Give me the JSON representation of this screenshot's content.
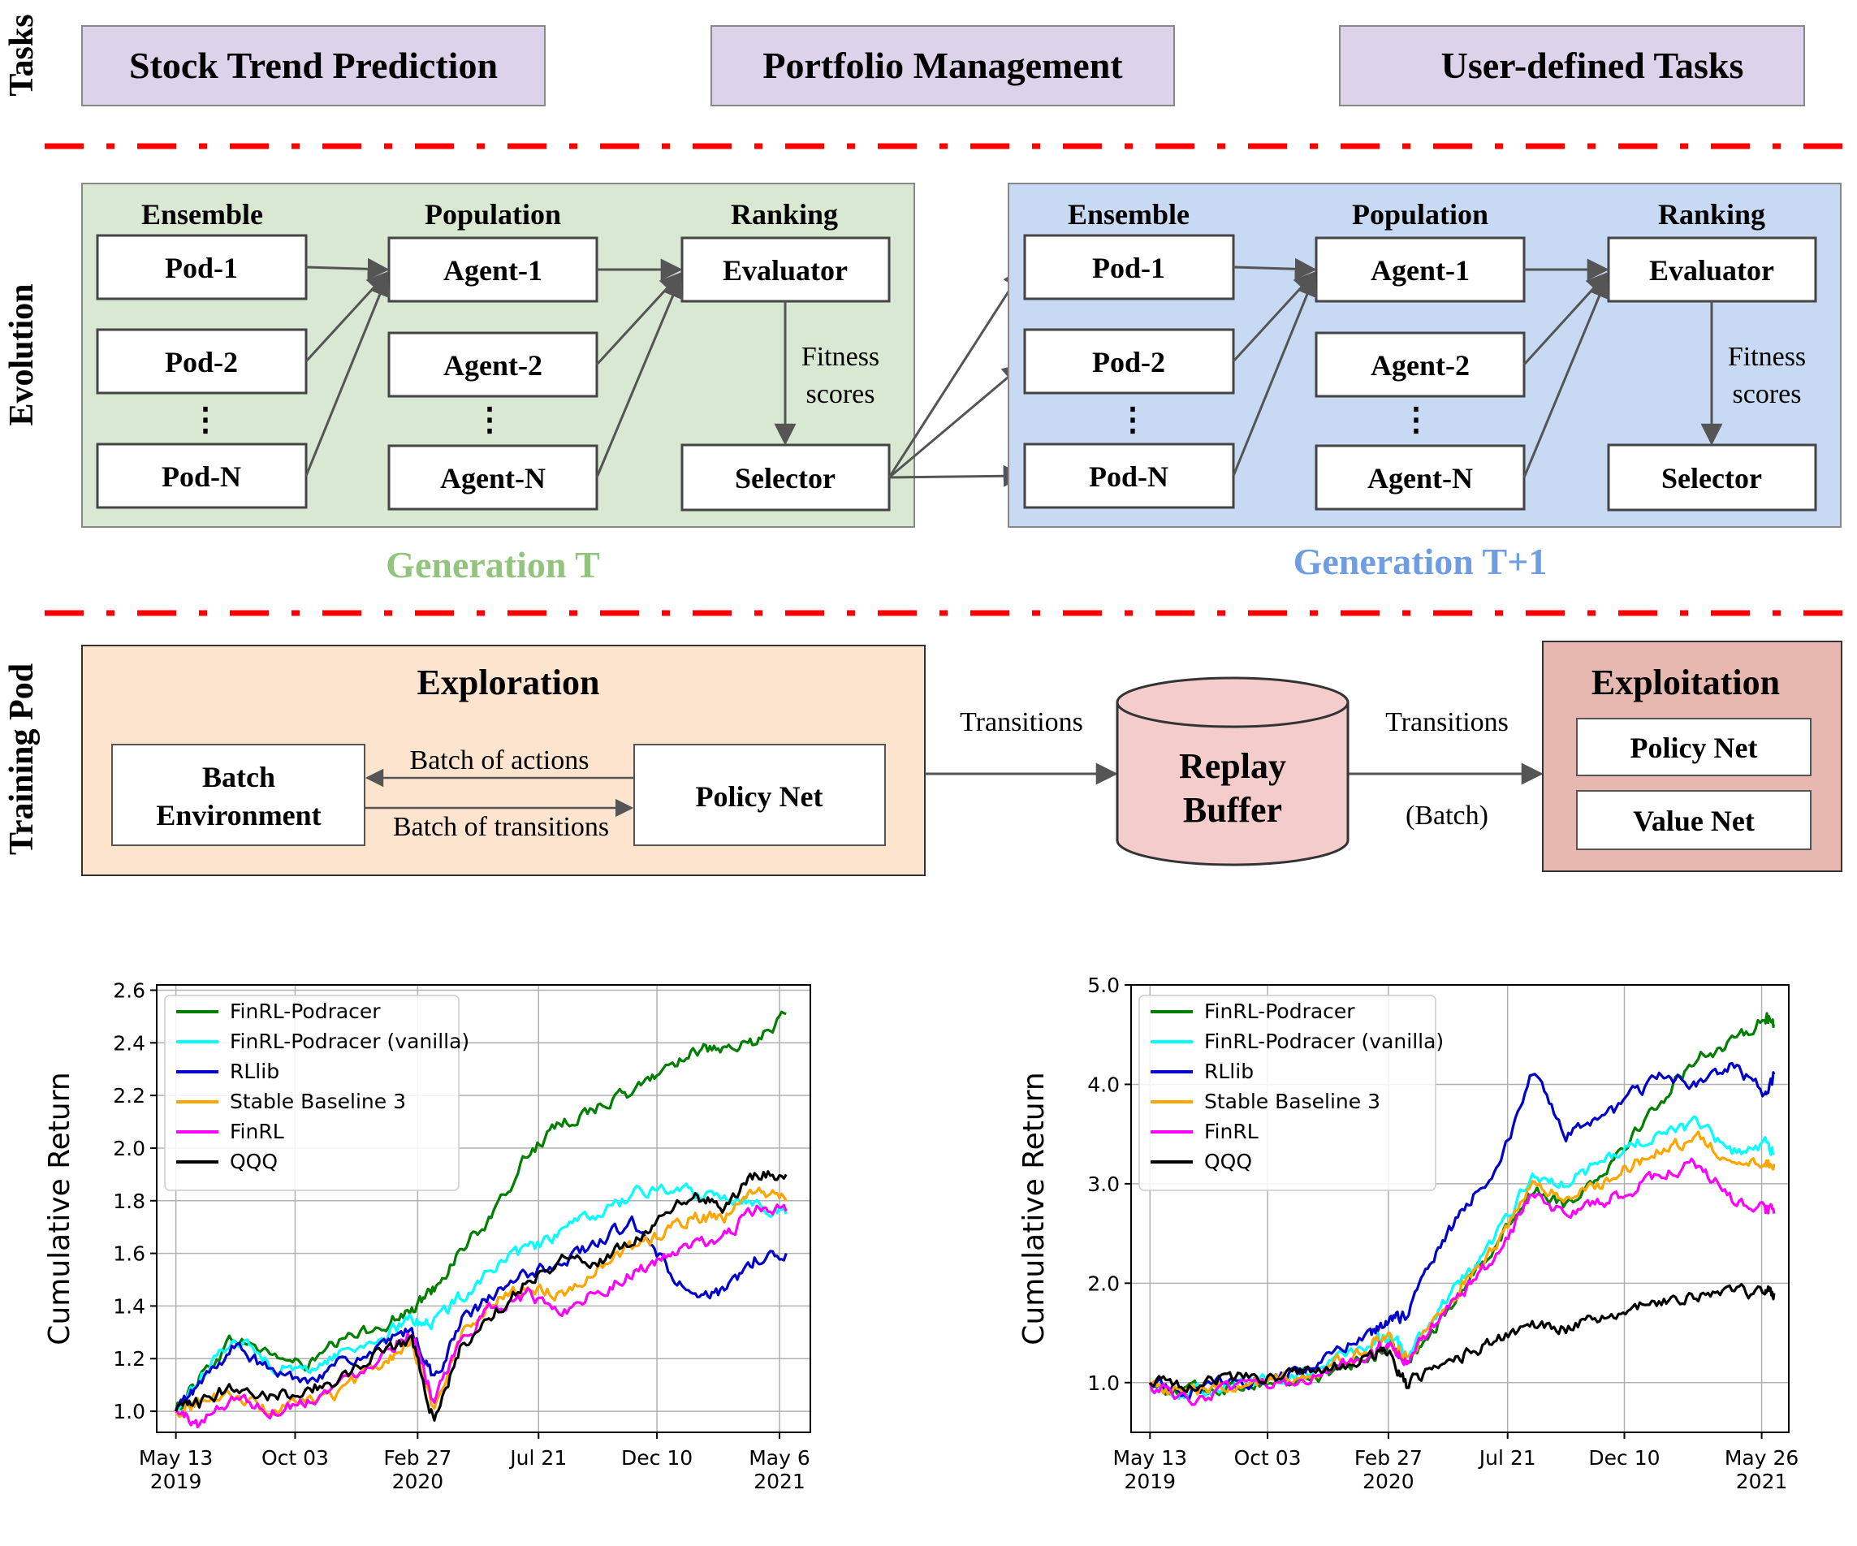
{
  "side_labels": {
    "tasks": "Tasks",
    "evolution": "Evolution",
    "training_pod": "Training Pod"
  },
  "tasks": [
    "Stock Trend Prediction",
    "Portfolio Management",
    "User-defined Tasks"
  ],
  "generations": [
    {
      "caption": "Generation T",
      "ensemble_header": "Ensemble",
      "population_header": "Population",
      "ranking_header": "Ranking",
      "pods": [
        "Pod-1",
        "Pod-2",
        "Pod-N"
      ],
      "agents": [
        "Agent-1",
        "Agent-2",
        "Agent-N"
      ],
      "evaluator": "Evaluator",
      "selector": "Selector",
      "fitness_line1": "Fitness",
      "fitness_line2": "scores"
    },
    {
      "caption": "Generation T+1",
      "ensemble_header": "Ensemble",
      "population_header": "Population",
      "ranking_header": "Ranking",
      "pods": [
        "Pod-1",
        "Pod-2",
        "Pod-N"
      ],
      "agents": [
        "Agent-1",
        "Agent-2",
        "Agent-N"
      ],
      "evaluator": "Evaluator",
      "selector": "Selector",
      "fitness_line1": "Fitness",
      "fitness_line2": "scores"
    }
  ],
  "training_pod": {
    "exploration_title": "Exploration",
    "batch_env_line1": "Batch",
    "batch_env_line2": "Environment",
    "policy_net": "Policy Net",
    "batch_actions": "Batch of actions",
    "batch_transitions": "Batch of transitions",
    "transitions_left": "Transitions",
    "replay_line1": "Replay",
    "replay_line2": "Buffer",
    "transitions_right": "Transitions",
    "batch_paren": "(Batch)",
    "exploitation_title": "Exploitation",
    "exploit_policy": "Policy Net",
    "exploit_value": "Value Net"
  },
  "colors": {
    "task_fill": "#dcd3ea",
    "gen_t_fill": "#d9e8d2",
    "gen_t1_fill": "#c8d9f4",
    "gen_t_caption": "#92c47e",
    "gen_t1_caption": "#6f9de1",
    "exploration_fill": "#fce4cf",
    "replay_fill": "#f4cccc",
    "exploitation_fill": "#e6b8af",
    "separator": "#ff0000",
    "FinRL-Podracer": "#007f00",
    "FinRL-Podracer (vanilla)": "#00ffff",
    "RLlib": "#0000cc",
    "Stable Baseline 3": "#ffa500",
    "FinRL": "#ff00ff",
    "QQQ": "#000000"
  },
  "chart_data": [
    {
      "type": "line",
      "ylabel": "Cumulative Return",
      "xlabel": "",
      "ylim": [
        0.92,
        2.62
      ],
      "yticks": [
        "1.0",
        "1.2",
        "1.4",
        "1.6",
        "1.8",
        "2.0",
        "2.2",
        "2.4",
        "2.6"
      ],
      "ytick_values": [
        1.0,
        1.2,
        1.4,
        1.6,
        1.8,
        2.0,
        2.2,
        2.4,
        2.6
      ],
      "xticks": [
        {
          "date": "2019-05-13",
          "line1": "May 13",
          "line2": "2019"
        },
        {
          "date": "2019-10-03",
          "line1": "Oct 03",
          "line2": ""
        },
        {
          "date": "2020-02-27",
          "line1": "Feb 27",
          "line2": "2020"
        },
        {
          "date": "2020-07-21",
          "line1": "Jul 21",
          "line2": ""
        },
        {
          "date": "2020-12-10",
          "line1": "Dec 10",
          "line2": ""
        },
        {
          "date": "2021-05-06",
          "line1": "May 6",
          "line2": "2021"
        }
      ],
      "xlim": [
        "2019-04-20",
        "2021-06-12"
      ],
      "grid": true,
      "legend_position": "top-left",
      "series": [
        {
          "name": "FinRL-Podracer",
          "x": [
            "2019-05-13",
            "2019-06-10",
            "2019-07-22",
            "2019-09-03",
            "2019-10-15",
            "2019-11-25",
            "2020-01-15",
            "2020-02-20",
            "2020-03-18",
            "2020-04-20",
            "2020-05-28",
            "2020-07-08",
            "2020-08-18",
            "2020-09-30",
            "2020-11-10",
            "2020-12-18",
            "2021-01-25",
            "2021-03-01",
            "2021-04-06",
            "2021-05-14"
          ],
          "values": [
            1.0,
            1.13,
            1.28,
            1.22,
            1.17,
            1.26,
            1.33,
            1.38,
            1.47,
            1.62,
            1.74,
            1.98,
            2.09,
            2.16,
            2.21,
            2.3,
            2.38,
            2.36,
            2.4,
            2.51
          ]
        },
        {
          "name": "FinRL-Podracer (vanilla)",
          "x": [
            "2019-05-13",
            "2019-06-10",
            "2019-07-22",
            "2019-09-03",
            "2019-10-15",
            "2019-11-25",
            "2020-01-15",
            "2020-02-20",
            "2020-03-18",
            "2020-04-20",
            "2020-05-28",
            "2020-07-08",
            "2020-08-18",
            "2020-09-30",
            "2020-11-10",
            "2020-12-18",
            "2021-01-25",
            "2021-03-01",
            "2021-04-06",
            "2021-05-14"
          ],
          "values": [
            1.0,
            1.12,
            1.29,
            1.18,
            1.15,
            1.22,
            1.28,
            1.35,
            1.34,
            1.44,
            1.55,
            1.61,
            1.68,
            1.75,
            1.82,
            1.85,
            1.83,
            1.82,
            1.8,
            1.75
          ]
        },
        {
          "name": "RLlib",
          "x": [
            "2019-05-13",
            "2019-06-10",
            "2019-07-22",
            "2019-09-03",
            "2019-10-15",
            "2019-11-25",
            "2020-01-15",
            "2020-02-20",
            "2020-03-18",
            "2020-04-20",
            "2020-05-28",
            "2020-07-08",
            "2020-08-18",
            "2020-09-30",
            "2020-11-10",
            "2020-12-18",
            "2021-01-25",
            "2021-03-01",
            "2021-04-06",
            "2021-05-14"
          ],
          "values": [
            1.0,
            1.1,
            1.25,
            1.15,
            1.12,
            1.18,
            1.24,
            1.31,
            1.12,
            1.34,
            1.44,
            1.52,
            1.57,
            1.64,
            1.72,
            1.56,
            1.42,
            1.45,
            1.58,
            1.6
          ]
        },
        {
          "name": "Stable Baseline 3",
          "x": [
            "2019-05-13",
            "2019-06-10",
            "2019-07-22",
            "2019-09-03",
            "2019-10-15",
            "2019-11-25",
            "2020-01-15",
            "2020-02-20",
            "2020-03-18",
            "2020-04-20",
            "2020-05-28",
            "2020-07-08",
            "2020-08-18",
            "2020-09-30",
            "2020-11-10",
            "2020-12-18",
            "2021-01-25",
            "2021-03-01",
            "2021-04-06",
            "2021-05-14"
          ],
          "values": [
            1.0,
            1.04,
            1.06,
            1.0,
            1.03,
            1.07,
            1.18,
            1.27,
            1.0,
            1.3,
            1.42,
            1.48,
            1.44,
            1.55,
            1.62,
            1.68,
            1.74,
            1.73,
            1.85,
            1.8
          ]
        },
        {
          "name": "FinRL",
          "x": [
            "2019-05-13",
            "2019-06-10",
            "2019-07-22",
            "2019-09-03",
            "2019-10-15",
            "2019-11-25",
            "2020-01-15",
            "2020-02-20",
            "2020-03-18",
            "2020-04-20",
            "2020-05-28",
            "2020-07-08",
            "2020-08-18",
            "2020-09-30",
            "2020-11-10",
            "2020-12-18",
            "2021-01-25",
            "2021-03-01",
            "2021-04-06",
            "2021-05-14"
          ],
          "values": [
            1.0,
            0.95,
            1.06,
            1.0,
            1.04,
            1.1,
            1.22,
            1.31,
            1.03,
            1.27,
            1.4,
            1.44,
            1.38,
            1.46,
            1.52,
            1.58,
            1.63,
            1.66,
            1.77,
            1.76
          ]
        },
        {
          "name": "QQQ",
          "x": [
            "2019-05-13",
            "2019-06-10",
            "2019-07-22",
            "2019-09-03",
            "2019-10-15",
            "2019-11-25",
            "2020-01-15",
            "2020-02-20",
            "2020-03-18",
            "2020-04-20",
            "2020-05-28",
            "2020-07-08",
            "2020-08-18",
            "2020-09-30",
            "2020-11-10",
            "2020-12-18",
            "2021-01-25",
            "2021-03-01",
            "2021-04-06",
            "2021-05-14"
          ],
          "values": [
            1.0,
            1.03,
            1.1,
            1.06,
            1.08,
            1.12,
            1.23,
            1.28,
            0.96,
            1.25,
            1.37,
            1.5,
            1.58,
            1.57,
            1.64,
            1.74,
            1.82,
            1.77,
            1.9,
            1.9
          ]
        }
      ]
    },
    {
      "type": "line",
      "ylabel": "Cumulative Return",
      "xlabel": "",
      "ylim": [
        0.5,
        5.0
      ],
      "yticks": [
        "1.0",
        "2.0",
        "3.0",
        "4.0",
        "5.0"
      ],
      "ytick_values": [
        1.0,
        2.0,
        3.0,
        4.0,
        5.0
      ],
      "xticks": [
        {
          "date": "2019-05-13",
          "line1": "May 13",
          "line2": "2019"
        },
        {
          "date": "2019-10-03",
          "line1": "Oct 03",
          "line2": ""
        },
        {
          "date": "2020-02-27",
          "line1": "Feb 27",
          "line2": "2020"
        },
        {
          "date": "2020-07-21",
          "line1": "Jul 21",
          "line2": ""
        },
        {
          "date": "2020-12-10",
          "line1": "Dec 10",
          "line2": ""
        },
        {
          "date": "2021-05-26",
          "line1": "May 26",
          "line2": "2021"
        }
      ],
      "xlim": [
        "2019-04-20",
        "2021-06-28"
      ],
      "grid": true,
      "legend_position": "top-left",
      "series": [
        {
          "name": "FinRL-Podracer",
          "x": [
            "2019-05-13",
            "2019-06-20",
            "2019-08-05",
            "2019-09-20",
            "2019-11-05",
            "2019-12-20",
            "2020-02-05",
            "2020-02-27",
            "2020-03-20",
            "2020-04-25",
            "2020-06-01",
            "2020-07-10",
            "2020-08-20",
            "2020-09-30",
            "2020-11-10",
            "2020-12-20",
            "2021-01-30",
            "2021-03-10",
            "2021-04-20",
            "2021-05-30",
            "2021-06-10"
          ],
          "values": [
            1.0,
            0.92,
            0.95,
            1.0,
            1.02,
            1.1,
            1.25,
            1.35,
            1.25,
            1.55,
            2.0,
            2.45,
            2.95,
            2.8,
            3.1,
            3.5,
            3.9,
            4.3,
            4.4,
            4.7,
            4.6
          ]
        },
        {
          "name": "FinRL-Podracer (vanilla)",
          "x": [
            "2019-05-13",
            "2019-06-20",
            "2019-08-05",
            "2019-09-20",
            "2019-11-05",
            "2019-12-20",
            "2020-02-05",
            "2020-02-27",
            "2020-03-20",
            "2020-04-25",
            "2020-06-01",
            "2020-07-10",
            "2020-08-20",
            "2020-09-30",
            "2020-11-10",
            "2020-12-20",
            "2021-01-30",
            "2021-03-10",
            "2021-04-20",
            "2021-05-30",
            "2021-06-10"
          ],
          "values": [
            1.0,
            0.9,
            0.96,
            1.02,
            1.08,
            1.2,
            1.4,
            1.45,
            1.3,
            1.7,
            2.1,
            2.5,
            3.1,
            3.0,
            3.2,
            3.4,
            3.5,
            3.6,
            3.3,
            3.4,
            3.3
          ]
        },
        {
          "name": "RLlib",
          "x": [
            "2019-05-13",
            "2019-06-20",
            "2019-08-05",
            "2019-09-20",
            "2019-11-05",
            "2019-12-20",
            "2020-02-05",
            "2020-02-27",
            "2020-03-20",
            "2020-04-25",
            "2020-06-01",
            "2020-07-10",
            "2020-08-20",
            "2020-09-30",
            "2020-11-10",
            "2020-12-20",
            "2021-01-30",
            "2021-03-10",
            "2021-04-20",
            "2021-05-30",
            "2021-06-10"
          ],
          "values": [
            1.0,
            0.92,
            0.98,
            1.02,
            1.1,
            1.25,
            1.5,
            1.6,
            1.7,
            2.3,
            2.8,
            3.2,
            4.1,
            3.5,
            3.6,
            3.9,
            4.1,
            4.0,
            4.2,
            3.9,
            4.1
          ]
        },
        {
          "name": "Stable Baseline 3",
          "x": [
            "2019-05-13",
            "2019-06-20",
            "2019-08-05",
            "2019-09-20",
            "2019-11-05",
            "2019-12-20",
            "2020-02-05",
            "2020-02-27",
            "2020-03-20",
            "2020-04-25",
            "2020-06-01",
            "2020-07-10",
            "2020-08-20",
            "2020-09-30",
            "2020-11-10",
            "2020-12-20",
            "2021-01-30",
            "2021-03-10",
            "2021-04-20",
            "2021-05-30",
            "2021-06-10"
          ],
          "values": [
            1.0,
            0.9,
            0.95,
            1.0,
            1.06,
            1.18,
            1.38,
            1.42,
            1.28,
            1.65,
            2.05,
            2.4,
            3.0,
            2.85,
            3.0,
            3.2,
            3.35,
            3.5,
            3.15,
            3.2,
            3.2
          ]
        },
        {
          "name": "FinRL",
          "x": [
            "2019-05-13",
            "2019-06-20",
            "2019-08-05",
            "2019-09-20",
            "2019-11-05",
            "2019-12-20",
            "2020-02-05",
            "2020-02-27",
            "2020-03-20",
            "2020-04-25",
            "2020-06-01",
            "2020-07-10",
            "2020-08-20",
            "2020-09-30",
            "2020-11-10",
            "2020-12-20",
            "2021-01-30",
            "2021-03-10",
            "2021-04-20",
            "2021-05-30",
            "2021-06-10"
          ],
          "values": [
            1.0,
            0.82,
            0.9,
            0.96,
            1.02,
            1.14,
            1.32,
            1.38,
            1.22,
            1.6,
            1.95,
            2.3,
            2.9,
            2.7,
            2.8,
            2.95,
            3.1,
            3.2,
            2.85,
            2.75,
            2.7
          ]
        },
        {
          "name": "QQQ",
          "x": [
            "2019-05-13",
            "2019-06-20",
            "2019-08-05",
            "2019-09-20",
            "2019-11-05",
            "2019-12-20",
            "2020-02-05",
            "2020-02-27",
            "2020-03-20",
            "2020-04-25",
            "2020-06-01",
            "2020-07-10",
            "2020-08-20",
            "2020-09-30",
            "2020-11-10",
            "2020-12-20",
            "2021-01-30",
            "2021-03-10",
            "2021-04-20",
            "2021-05-30",
            "2021-06-10"
          ],
          "values": [
            1.0,
            0.98,
            1.05,
            1.04,
            1.08,
            1.15,
            1.25,
            1.3,
            0.98,
            1.18,
            1.3,
            1.45,
            1.6,
            1.55,
            1.65,
            1.75,
            1.82,
            1.85,
            1.9,
            1.92,
            1.9
          ]
        }
      ]
    }
  ]
}
